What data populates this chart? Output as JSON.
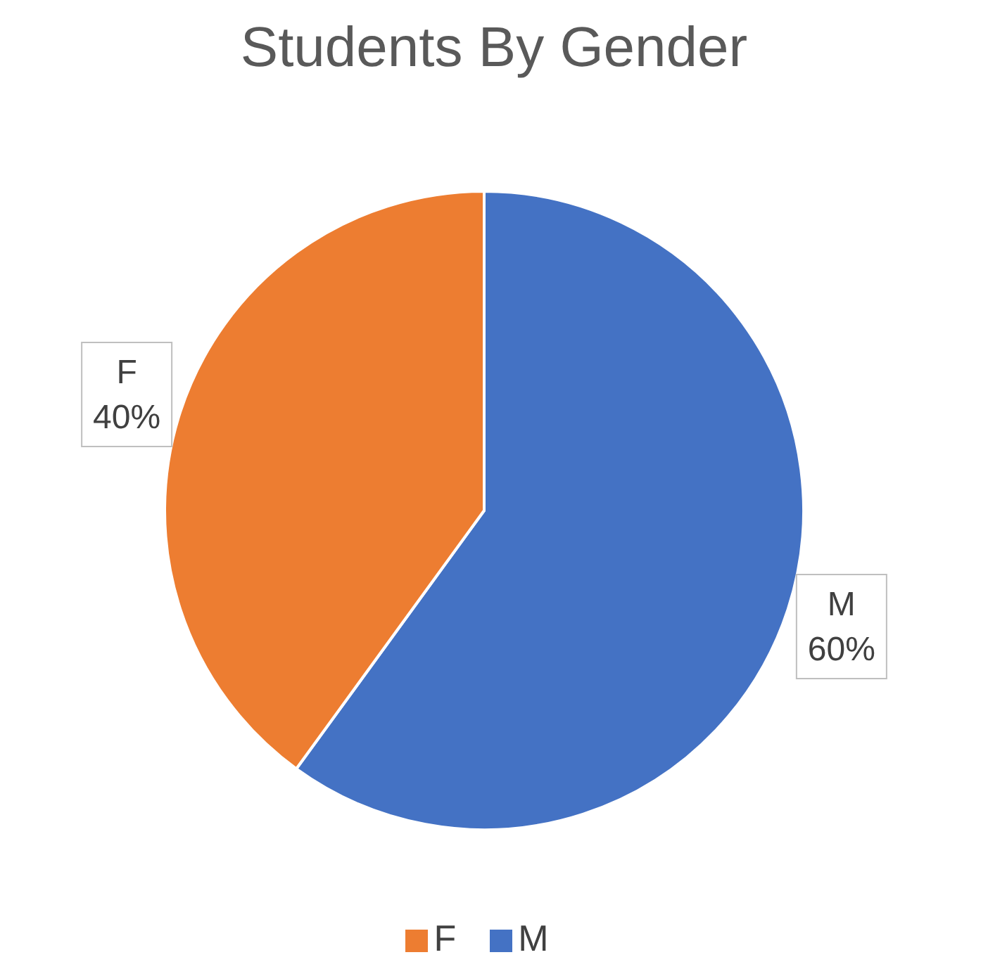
{
  "chart_data": {
    "type": "pie",
    "title": "Students By Gender",
    "categories": [
      "M",
      "F"
    ],
    "values": [
      60,
      40
    ],
    "value_labels": [
      "60%",
      "40%"
    ],
    "colors": [
      "#4472c4",
      "#ed7d31"
    ],
    "legend": "bottom"
  }
}
